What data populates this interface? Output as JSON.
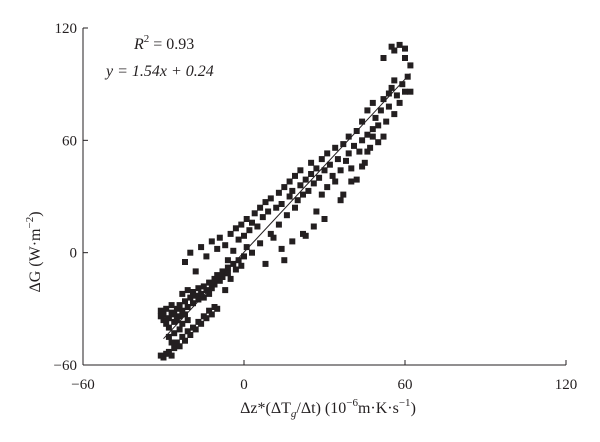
{
  "chart_data": {
    "type": "scatter",
    "x_axis": {
      "label_parts": [
        "Δz*(ΔT",
        "g",
        "/Δt) (10",
        "−6",
        "m·K·s",
        "−1",
        ")"
      ],
      "range": [
        -60,
        120
      ],
      "ticks": [
        "−60",
        "0",
        "60",
        "120"
      ],
      "tick_values": [
        -60,
        0,
        60,
        120
      ]
    },
    "y_axis": {
      "label_parts": [
        "ΔG (W·m",
        "−2",
        ")"
      ],
      "range": [
        -60,
        120
      ],
      "ticks": [
        "−60",
        "0",
        "60",
        "120"
      ],
      "tick_values": [
        -60,
        0,
        60,
        120
      ]
    },
    "annotations": {
      "r2_var": "R",
      "r2_sup": "2",
      "r2_value": " = 0.93",
      "equation": "y = 1.54x + 0.24"
    },
    "fit_line": {
      "slope": 1.54,
      "intercept": 0.24,
      "x_range": [
        -30,
        62
      ]
    },
    "grid": false,
    "legend": "none",
    "marker": "filled-square",
    "marker_color": "#231f20",
    "points": [
      [
        -31,
        -31
      ],
      [
        -31,
        -34
      ],
      [
        -30,
        -36
      ],
      [
        -30,
        -33
      ],
      [
        -29,
        -38
      ],
      [
        -29,
        -30
      ],
      [
        -28,
        -35
      ],
      [
        -28,
        -40
      ],
      [
        -27,
        -32
      ],
      [
        -27,
        -28
      ],
      [
        -26,
        -37
      ],
      [
        -26,
        -33
      ],
      [
        -25,
        -30
      ],
      [
        -25,
        -36
      ],
      [
        -24,
        -34
      ],
      [
        -24,
        -28
      ],
      [
        -23,
        -31
      ],
      [
        -23,
        -22
      ],
      [
        -22,
        -26
      ],
      [
        -22,
        -33
      ],
      [
        -21,
        -20
      ],
      [
        -21,
        -29
      ],
      [
        -20,
        -24
      ],
      [
        -19,
        -27
      ],
      [
        -19,
        -21
      ],
      [
        -18,
        -23
      ],
      [
        -17,
        -19
      ],
      [
        -17,
        -25
      ],
      [
        -16,
        -22
      ],
      [
        -15,
        -18
      ],
      [
        -15,
        -24
      ],
      [
        -14,
        -20
      ],
      [
        -13,
        -16
      ],
      [
        -13,
        -22
      ],
      [
        -12,
        -19
      ],
      [
        -11,
        -14
      ],
      [
        -11,
        -17
      ],
      [
        -10,
        -12
      ],
      [
        -9,
        -15
      ],
      [
        -8,
        -10
      ],
      [
        -8,
        -13
      ],
      [
        -7,
        -20
      ],
      [
        -6,
        -8
      ],
      [
        -6,
        -11
      ],
      [
        -5,
        -14
      ],
      [
        -4,
        -6
      ],
      [
        -3,
        -9
      ],
      [
        -2,
        -4
      ],
      [
        -1,
        -7
      ],
      [
        0,
        -2
      ],
      [
        -31,
        -55
      ],
      [
        -30,
        -56
      ],
      [
        -29,
        -54
      ],
      [
        -28,
        -53
      ],
      [
        -27,
        -55
      ],
      [
        -26,
        -51
      ],
      [
        -25,
        -48
      ],
      [
        -24,
        -50
      ],
      [
        -23,
        -45
      ],
      [
        -22,
        -47
      ],
      [
        -21,
        -42
      ],
      [
        -20,
        -44
      ],
      [
        -19,
        -40
      ],
      [
        -18,
        -41
      ],
      [
        -17,
        -37
      ],
      [
        -16,
        -38
      ],
      [
        -15,
        -34
      ],
      [
        -14,
        -35
      ],
      [
        -13,
        -31
      ],
      [
        -12,
        -33
      ],
      [
        -11,
        -29
      ],
      [
        -10,
        -30
      ],
      [
        -28,
        -45
      ],
      [
        -27,
        -48
      ],
      [
        -26,
        -43
      ],
      [
        -24,
        -41
      ],
      [
        -23,
        -38
      ],
      [
        -21,
        -36
      ],
      [
        -22,
        -5
      ],
      [
        -20,
        0
      ],
      [
        -18,
        -10
      ],
      [
        -16,
        3
      ],
      [
        -14,
        -2
      ],
      [
        -12,
        6
      ],
      [
        -10,
        2
      ],
      [
        -9,
        8
      ],
      [
        -7,
        4
      ],
      [
        -6,
        -4
      ],
      [
        -5,
        10
      ],
      [
        -4,
        1
      ],
      [
        -3,
        13
      ],
      [
        -2,
        7
      ],
      [
        -1,
        15
      ],
      [
        0,
        9
      ],
      [
        1,
        18
      ],
      [
        1,
        3
      ],
      [
        2,
        12
      ],
      [
        3,
        16
      ],
      [
        3,
        0
      ],
      [
        4,
        21
      ],
      [
        5,
        14
      ],
      [
        6,
        24
      ],
      [
        6,
        5
      ],
      [
        7,
        19
      ],
      [
        8,
        27
      ],
      [
        8,
        -6
      ],
      [
        9,
        22
      ],
      [
        10,
        29
      ],
      [
        10,
        10
      ],
      [
        11,
        8
      ],
      [
        12,
        24
      ],
      [
        13,
        32
      ],
      [
        13,
        15
      ],
      [
        14,
        26
      ],
      [
        15,
        35
      ],
      [
        15,
        -4
      ],
      [
        16,
        20
      ],
      [
        17,
        30
      ],
      [
        17,
        38
      ],
      [
        18,
        33
      ],
      [
        19,
        41
      ],
      [
        19,
        24
      ],
      [
        20,
        28
      ],
      [
        21,
        36
      ],
      [
        21,
        44
      ],
      [
        22,
        31
      ],
      [
        23,
        39
      ],
      [
        23,
        9
      ],
      [
        24,
        33
      ],
      [
        25,
        42
      ],
      [
        25,
        48
      ],
      [
        26,
        37
      ],
      [
        27,
        45
      ],
      [
        27,
        22
      ],
      [
        28,
        40
      ],
      [
        29,
        50
      ],
      [
        29,
        31
      ],
      [
        30,
        44
      ],
      [
        31,
        53
      ],
      [
        31,
        35
      ],
      [
        32,
        47
      ],
      [
        33,
        41
      ],
      [
        34,
        56
      ],
      [
        34,
        38
      ],
      [
        35,
        50
      ],
      [
        36,
        44
      ],
      [
        37,
        58
      ],
      [
        37,
        31
      ],
      [
        38,
        49
      ],
      [
        39,
        62
      ],
      [
        39,
        53
      ],
      [
        40,
        45
      ],
      [
        41,
        57
      ],
      [
        42,
        65
      ],
      [
        42,
        39
      ],
      [
        43,
        54
      ],
      [
        44,
        60
      ],
      [
        44,
        70
      ],
      [
        45,
        48
      ],
      [
        46,
        63
      ],
      [
        46,
        76
      ],
      [
        47,
        56
      ],
      [
        48,
        66
      ],
      [
        48,
        80
      ],
      [
        49,
        72
      ],
      [
        50,
        59
      ],
      [
        50,
        68
      ],
      [
        51,
        76
      ],
      [
        52,
        82
      ],
      [
        52,
        62
      ],
      [
        53,
        70
      ],
      [
        54,
        85
      ],
      [
        54,
        78
      ],
      [
        55,
        88
      ],
      [
        56,
        74
      ],
      [
        56,
        92
      ],
      [
        57,
        84
      ],
      [
        58,
        80
      ],
      [
        59,
        90
      ],
      [
        60,
        86
      ],
      [
        60,
        104
      ],
      [
        61,
        94
      ],
      [
        62,
        100
      ],
      [
        62,
        86
      ],
      [
        55,
        110
      ],
      [
        56,
        108
      ],
      [
        58,
        111
      ],
      [
        60,
        109
      ],
      [
        52,
        104
      ],
      [
        48,
        62
      ],
      [
        46,
        54
      ],
      [
        44,
        46
      ],
      [
        40,
        38
      ],
      [
        36,
        28
      ],
      [
        30,
        18
      ],
      [
        26,
        14
      ],
      [
        22,
        10
      ],
      [
        18,
        6
      ],
      [
        14,
        2
      ]
    ]
  }
}
